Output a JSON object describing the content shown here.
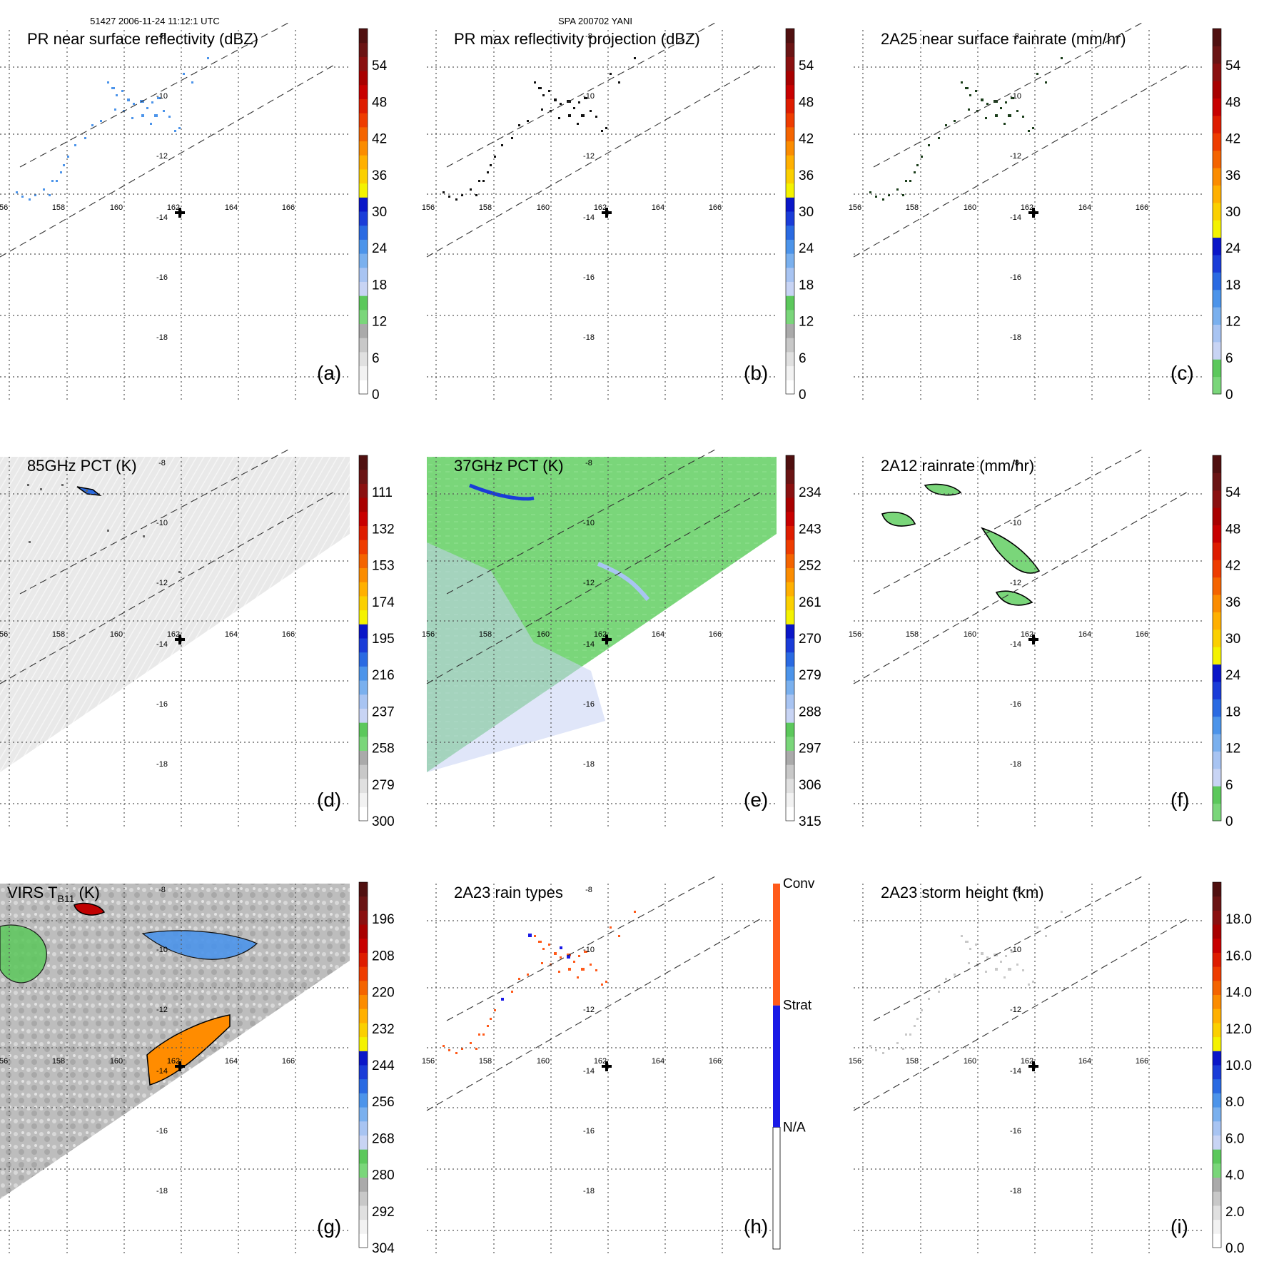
{
  "header": {
    "orbit_line": "51427 2006-11-24 11:12:1 UTC",
    "storm_line": "SPA 200702 YANI"
  },
  "map": {
    "lon_labels": [
      "156",
      "158",
      "160",
      "162",
      "164",
      "166"
    ],
    "lat_labels": [
      "-8",
      "-10",
      "-12",
      "-14",
      "-16",
      "-18"
    ],
    "storm_center_marker": "plus-icon"
  },
  "colors": {
    "colorbar_standard": [
      "#ffffff",
      "#f2f2f2",
      "#e0e0e0",
      "#c8c8c8",
      "#aaaaaa",
      "#7ad67a",
      "#5cc85c",
      "#c8d4f4",
      "#a8c4f2",
      "#7ab0ee",
      "#4c94ea",
      "#2a6ae2",
      "#1a3cd8",
      "#0a16c8",
      "#f4f200",
      "#fbd000",
      "#ffb000",
      "#fb8c00",
      "#f46400",
      "#ee3c00",
      "#de1c00",
      "#c80000",
      "#a80000",
      "#8a1010",
      "#6a1414",
      "#501010"
    ],
    "colorbar_rain": [
      "#7ad67a",
      "#5cc85c",
      "#c8d4f4",
      "#a8c4f2",
      "#7ab0ee",
      "#4c94ea",
      "#2a6ae2",
      "#1a3cd8",
      "#0a16c8",
      "#f4f200",
      "#fbd000",
      "#ffb000",
      "#fb8c00",
      "#f46400",
      "#ee3c00",
      "#de1c00",
      "#c80000",
      "#a80000",
      "#8a1010",
      "#6a1414",
      "#501010"
    ],
    "rain_type": {
      "conv": "#ff5a1a",
      "strat": "#1a1ae6",
      "na": "#ffffff"
    }
  },
  "panels": [
    {
      "id": "a",
      "title": "PR near surface reflectivity (dBZ)",
      "letter": "(a)",
      "colorbar_labels": [
        "0",
        "6",
        "12",
        "18",
        "24",
        "30",
        "36",
        "42",
        "48",
        "54"
      ],
      "colorbar_scheme": "standard"
    },
    {
      "id": "b",
      "title": "PR max reflectivity projection (dBZ)",
      "letter": "(b)",
      "colorbar_labels": [
        "0",
        "6",
        "12",
        "18",
        "24",
        "30",
        "36",
        "42",
        "48",
        "54"
      ],
      "colorbar_scheme": "standard"
    },
    {
      "id": "c",
      "title": "2A25 near surface rainrate (mm/hr)",
      "letter": "(c)",
      "colorbar_labels": [
        "0",
        "6",
        "12",
        "18",
        "24",
        "30",
        "36",
        "42",
        "48",
        "54"
      ],
      "colorbar_scheme": "rain"
    },
    {
      "id": "d",
      "title": "85GHz PCT (K)",
      "letter": "(d)",
      "colorbar_labels": [
        "300",
        "279",
        "258",
        "237",
        "216",
        "195",
        "174",
        "153",
        "132",
        "111"
      ],
      "colorbar_scheme": "standard"
    },
    {
      "id": "e",
      "title": "37GHz PCT (K)",
      "letter": "(e)",
      "colorbar_labels": [
        "315",
        "306",
        "297",
        "288",
        "279",
        "270",
        "261",
        "252",
        "243",
        "234"
      ],
      "colorbar_scheme": "standard"
    },
    {
      "id": "f",
      "title": "2A12 rainrate (mm/hr)",
      "letter": "(f)",
      "colorbar_labels": [
        "0",
        "6",
        "12",
        "18",
        "24",
        "30",
        "36",
        "42",
        "48",
        "54"
      ],
      "colorbar_scheme": "rain"
    },
    {
      "id": "g",
      "title_main": "VIRS T",
      "title_sub": "B11",
      "title_tail": " (K)",
      "letter": "(g)",
      "colorbar_labels": [
        "304",
        "292",
        "280",
        "268",
        "256",
        "244",
        "232",
        "220",
        "208",
        "196"
      ],
      "colorbar_scheme": "standard"
    },
    {
      "id": "h",
      "title": "2A23 rain types",
      "letter": "(h)",
      "colorbar_labels": [
        "N/A",
        "Strat",
        "Conv"
      ],
      "colorbar_scheme": "raintype"
    },
    {
      "id": "i",
      "title": "2A23 storm height (km)",
      "letter": "(i)",
      "colorbar_labels": [
        "0.0",
        "2.0",
        "4.0",
        "6.0",
        "8.0",
        "10.0",
        "12.0",
        "14.0",
        "16.0",
        "18.0"
      ],
      "colorbar_scheme": "standard"
    }
  ]
}
